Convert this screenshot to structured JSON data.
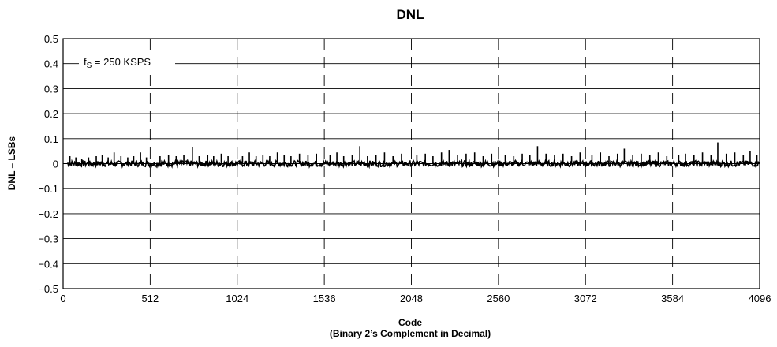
{
  "chart_data": {
    "type": "line",
    "title": "DNL",
    "xlabel": "Code",
    "xlabel_sub": "(Binary 2’s Complement in Decimal)",
    "ylabel": "DNL – LSBs",
    "xlim": [
      0,
      4096
    ],
    "ylim": [
      -0.5,
      0.5
    ],
    "xticks": [
      0,
      512,
      1024,
      1536,
      2048,
      2560,
      3072,
      3584,
      4096
    ],
    "xtick_labels": [
      "0",
      "512",
      "1024",
      "1536",
      "2048",
      "2560",
      "3072",
      "3584",
      "4096"
    ],
    "yticks": [
      0.5,
      0.4,
      0.3,
      0.2,
      0.1,
      0,
      -0.1,
      -0.2,
      -0.3,
      -0.4,
      -0.5
    ],
    "ytick_labels": [
      "0.5",
      "0.4",
      "0.3",
      "0.2",
      "0.1",
      "0",
      "−0.1",
      "−0.2",
      "−0.3",
      "−0.4",
      "−0.5"
    ],
    "grid": {
      "horizontal": "solid",
      "vertical": "dashed"
    },
    "annotation": {
      "symbol": "f",
      "subscript": "S",
      "text": " = 250 KSPS"
    },
    "series": [
      {
        "line_color": "#000000",
        "baseline_noise": 0.012,
        "spikes": [
          {
            "x": 40,
            "y": 0.03
          },
          {
            "x": 75,
            "y": 0.025
          },
          {
            "x": 110,
            "y": 0.02
          },
          {
            "x": 150,
            "y": 0.025
          },
          {
            "x": 195,
            "y": 0.03
          },
          {
            "x": 230,
            "y": 0.035
          },
          {
            "x": 265,
            "y": 0.025
          },
          {
            "x": 300,
            "y": 0.045
          },
          {
            "x": 340,
            "y": 0.03
          },
          {
            "x": 380,
            "y": 0.025
          },
          {
            "x": 415,
            "y": 0.03
          },
          {
            "x": 455,
            "y": 0.045
          },
          {
            "x": 490,
            "y": 0.025
          },
          {
            "x": 570,
            "y": 0.03
          },
          {
            "x": 620,
            "y": 0.035
          },
          {
            "x": 665,
            "y": 0.03
          },
          {
            "x": 710,
            "y": 0.035
          },
          {
            "x": 760,
            "y": 0.065
          },
          {
            "x": 800,
            "y": 0.03
          },
          {
            "x": 850,
            "y": 0.035
          },
          {
            "x": 885,
            "y": 0.03
          },
          {
            "x": 930,
            "y": 0.04
          },
          {
            "x": 970,
            "y": 0.03
          },
          {
            "x": 1055,
            "y": 0.03
          },
          {
            "x": 1095,
            "y": 0.045
          },
          {
            "x": 1135,
            "y": 0.03
          },
          {
            "x": 1175,
            "y": 0.035
          },
          {
            "x": 1215,
            "y": 0.03
          },
          {
            "x": 1260,
            "y": 0.045
          },
          {
            "x": 1300,
            "y": 0.035
          },
          {
            "x": 1340,
            "y": 0.03
          },
          {
            "x": 1390,
            "y": 0.04
          },
          {
            "x": 1440,
            "y": 0.035
          },
          {
            "x": 1490,
            "y": 0.04
          },
          {
            "x": 1570,
            "y": 0.035
          },
          {
            "x": 1610,
            "y": 0.045
          },
          {
            "x": 1650,
            "y": 0.03
          },
          {
            "x": 1700,
            "y": 0.035
          },
          {
            "x": 1745,
            "y": 0.07
          },
          {
            "x": 1790,
            "y": 0.03
          },
          {
            "x": 1840,
            "y": 0.035
          },
          {
            "x": 1890,
            "y": 0.045
          },
          {
            "x": 1940,
            "y": 0.03
          },
          {
            "x": 1990,
            "y": 0.04
          },
          {
            "x": 2080,
            "y": 0.035
          },
          {
            "x": 2130,
            "y": 0.04
          },
          {
            "x": 2175,
            "y": 0.03
          },
          {
            "x": 2225,
            "y": 0.045
          },
          {
            "x": 2270,
            "y": 0.055
          },
          {
            "x": 2320,
            "y": 0.035
          },
          {
            "x": 2370,
            "y": 0.04
          },
          {
            "x": 2420,
            "y": 0.045
          },
          {
            "x": 2470,
            "y": 0.03
          },
          {
            "x": 2520,
            "y": 0.04
          },
          {
            "x": 2600,
            "y": 0.035
          },
          {
            "x": 2650,
            "y": 0.03
          },
          {
            "x": 2700,
            "y": 0.04
          },
          {
            "x": 2745,
            "y": 0.035
          },
          {
            "x": 2790,
            "y": 0.07
          },
          {
            "x": 2840,
            "y": 0.04
          },
          {
            "x": 2890,
            "y": 0.035
          },
          {
            "x": 2940,
            "y": 0.04
          },
          {
            "x": 2990,
            "y": 0.03
          },
          {
            "x": 3040,
            "y": 0.045
          },
          {
            "x": 3110,
            "y": 0.035
          },
          {
            "x": 3160,
            "y": 0.045
          },
          {
            "x": 3210,
            "y": 0.03
          },
          {
            "x": 3260,
            "y": 0.04
          },
          {
            "x": 3300,
            "y": 0.06
          },
          {
            "x": 3350,
            "y": 0.035
          },
          {
            "x": 3400,
            "y": 0.04
          },
          {
            "x": 3450,
            "y": 0.035
          },
          {
            "x": 3500,
            "y": 0.045
          },
          {
            "x": 3550,
            "y": 0.03
          },
          {
            "x": 3620,
            "y": 0.035
          },
          {
            "x": 3660,
            "y": 0.04
          },
          {
            "x": 3710,
            "y": 0.035
          },
          {
            "x": 3760,
            "y": 0.045
          },
          {
            "x": 3810,
            "y": 0.035
          },
          {
            "x": 3850,
            "y": 0.085
          },
          {
            "x": 3900,
            "y": 0.04
          },
          {
            "x": 3950,
            "y": 0.045
          },
          {
            "x": 4000,
            "y": 0.035
          },
          {
            "x": 4040,
            "y": 0.05
          },
          {
            "x": 4080,
            "y": 0.035
          }
        ]
      }
    ]
  }
}
